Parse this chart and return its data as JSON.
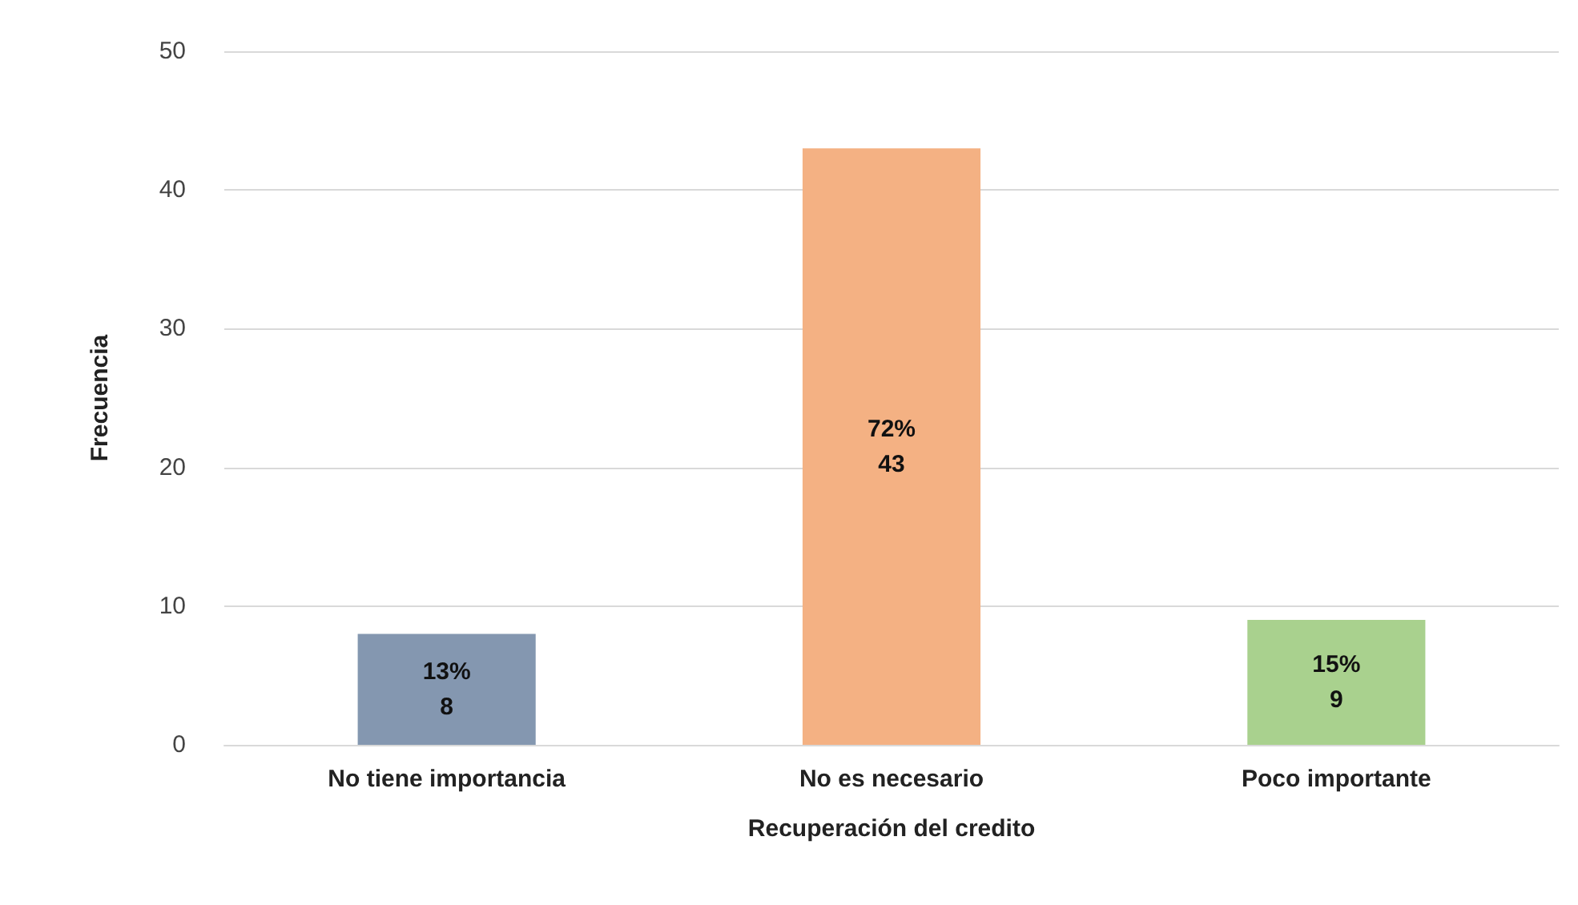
{
  "chart_data": {
    "type": "bar",
    "xlabel": "Recuperación del credito",
    "ylabel": "Frecuencia",
    "categories": [
      "No tiene importancia",
      "No es necesario",
      "Poco importante"
    ],
    "values": [
      8,
      43,
      9
    ],
    "colors": [
      "#8497b0",
      "#f4b183",
      "#a9d18e"
    ],
    "value_labels": [
      "13%\n8",
      "72%\n43",
      "15%\n9"
    ],
    "ylim": [
      0,
      50
    ],
    "yticks": [
      0,
      10,
      20,
      30,
      40,
      50
    ],
    "grid": "y"
  }
}
